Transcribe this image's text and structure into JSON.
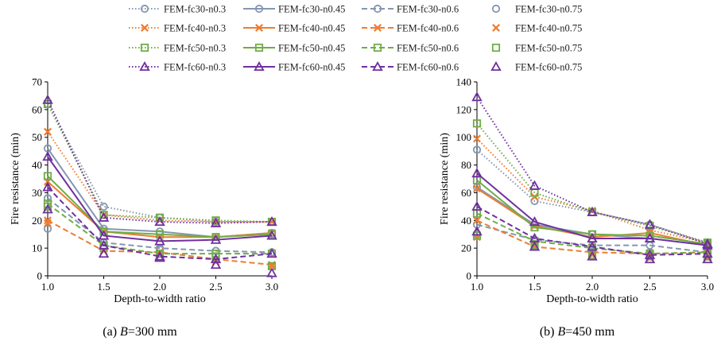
{
  "legend": {
    "placement": "top",
    "columns": 4
  },
  "styles": {
    "fc30": {
      "color": "#8496B0",
      "marker": "circle"
    },
    "fc40": {
      "color": "#ED7D31",
      "marker": "x"
    },
    "fc50": {
      "color": "#70AD47",
      "marker": "square"
    },
    "fc60": {
      "color": "#7030A0",
      "marker": "triangle"
    },
    "n0.3": "dotted",
    "n0.45": "solid",
    "n0.6": "dashed",
    "n0.75": "none"
  },
  "chart_data": [
    {
      "type": "line",
      "caption_prefix": "(a) ",
      "caption_var": "B",
      "caption_rest": "=300 mm",
      "xlabel": "Depth-to-width ratio",
      "ylabel": "Fire resistance (min)",
      "x": [
        1.0,
        1.5,
        2.0,
        2.5,
        3.0
      ],
      "xlim": [
        1.0,
        3.0
      ],
      "ylim": [
        0,
        70
      ],
      "yticks": [
        0,
        10,
        20,
        30,
        40,
        50,
        60,
        70
      ],
      "xtick_labels": [
        "1.0",
        "1.5",
        "2.0",
        "2.5",
        "3.0"
      ],
      "grid": false,
      "series": [
        {
          "name": "FEM-fc30-n0.3",
          "values": [
            62,
            25,
            21,
            19.5,
            19.5
          ]
        },
        {
          "name": "FEM-fc30-n0.45",
          "values": [
            46,
            17,
            16,
            14,
            15.5
          ]
        },
        {
          "name": "FEM-fc30-n0.6",
          "values": [
            28,
            12,
            10,
            9,
            8.5
          ]
        },
        {
          "name": "FEM-fc30-n0.75",
          "values": [
            17,
            12,
            9.5,
            9,
            8.5
          ]
        },
        {
          "name": "FEM-fc40-n0.3",
          "values": [
            52,
            22,
            20,
            19.5,
            19.5
          ]
        },
        {
          "name": "FEM-fc40-n0.45",
          "values": [
            34,
            16,
            14,
            14,
            15.5
          ]
        },
        {
          "name": "FEM-fc40-n0.6",
          "values": [
            20,
            9,
            8.5,
            6,
            4
          ]
        },
        {
          "name": "FEM-fc40-n0.75",
          "values": [
            19,
            9,
            8.5,
            5,
            3.5
          ]
        },
        {
          "name": "FEM-fc50-n0.3",
          "values": [
            62,
            22,
            21,
            20,
            19.5
          ]
        },
        {
          "name": "FEM-fc50-n0.45",
          "values": [
            36,
            16,
            15,
            14,
            15
          ]
        },
        {
          "name": "FEM-fc50-n0.6",
          "values": [
            26,
            11,
            8,
            8,
            8
          ]
        },
        {
          "name": "FEM-fc50-n0.75",
          "values": [
            25,
            10,
            8,
            7,
            3.5
          ]
        },
        {
          "name": "FEM-fc60-n0.3",
          "values": [
            63.5,
            21,
            19.5,
            19,
            19.5
          ]
        },
        {
          "name": "FEM-fc60-n0.45",
          "values": [
            43,
            14.5,
            12.5,
            13,
            14.5
          ]
        },
        {
          "name": "FEM-fc60-n0.6",
          "values": [
            32,
            11,
            7,
            6,
            8
          ]
        },
        {
          "name": "FEM-fc60-n0.75",
          "values": [
            24,
            8,
            6.5,
            4,
            1
          ]
        }
      ]
    },
    {
      "type": "line",
      "caption_prefix": "(b) ",
      "caption_var": "B",
      "caption_rest": "=450 mm",
      "xlabel": "Depth-to-width ratio",
      "ylabel": "Fire resistance (min)",
      "x": [
        1.0,
        1.5,
        2.0,
        2.5,
        3.0
      ],
      "xlim": [
        1.0,
        3.0
      ],
      "ylim": [
        0,
        140
      ],
      "yticks": [
        0,
        20,
        40,
        60,
        80,
        100,
        120,
        140
      ],
      "xtick_labels": [
        "1.0",
        "1.5",
        "2.0",
        "2.5",
        "3.0"
      ],
      "grid": false,
      "series": [
        {
          "name": "FEM-fc30-n0.3",
          "values": [
            91,
            54,
            46,
            37,
            24
          ]
        },
        {
          "name": "FEM-fc30-n0.45",
          "values": [
            64,
            37,
            30,
            27,
            22
          ]
        },
        {
          "name": "FEM-fc30-n0.6",
          "values": [
            37,
            26,
            22,
            22,
            17
          ]
        },
        {
          "name": "FEM-fc30-n0.75",
          "values": [
            30,
            23,
            19,
            17,
            15
          ]
        },
        {
          "name": "FEM-fc40-n0.3",
          "values": [
            99,
            57,
            47,
            33,
            24
          ]
        },
        {
          "name": "FEM-fc40-n0.45",
          "values": [
            63,
            36,
            28,
            31,
            22
          ]
        },
        {
          "name": "FEM-fc40-n0.6",
          "values": [
            40,
            21,
            17,
            16,
            17
          ]
        },
        {
          "name": "FEM-fc40-n0.75",
          "values": [
            28,
            22,
            15,
            13,
            13
          ]
        },
        {
          "name": "FEM-fc50-n0.3",
          "values": [
            110,
            60,
            46,
            36,
            24
          ]
        },
        {
          "name": "FEM-fc50-n0.45",
          "values": [
            69,
            35,
            30,
            29,
            23
          ]
        },
        {
          "name": "FEM-fc50-n0.6",
          "values": [
            45,
            25,
            20,
            16,
            17
          ]
        },
        {
          "name": "FEM-fc50-n0.75",
          "values": [
            29,
            22,
            15,
            14,
            14
          ]
        },
        {
          "name": "FEM-fc60-n0.3",
          "values": [
            129,
            65,
            46,
            37,
            23
          ]
        },
        {
          "name": "FEM-fc60-n0.45",
          "values": [
            74,
            39,
            27,
            27,
            22
          ]
        },
        {
          "name": "FEM-fc60-n0.6",
          "values": [
            50,
            27,
            21,
            15,
            16
          ]
        },
        {
          "name": "FEM-fc60-n0.75",
          "values": [
            32,
            21,
            14,
            12,
            12
          ]
        }
      ]
    }
  ]
}
